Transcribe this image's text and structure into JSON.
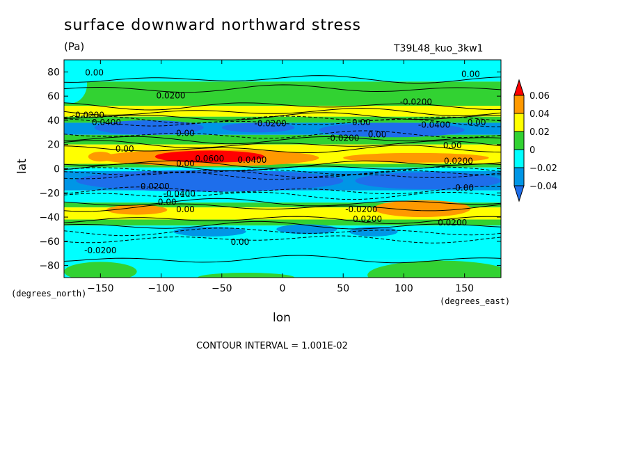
{
  "chart_data": {
    "type": "heatmap",
    "title": "surface downward northward stress",
    "units": "(Pa)",
    "dataset": "T39L48_kuo_3kw1",
    "xlabel": "lon",
    "ylabel": "lat",
    "x_unit_label": "(degrees_east)",
    "y_unit_label": "(degrees_north)",
    "xlim": [
      -180,
      180
    ],
    "ylim": [
      -90,
      90
    ],
    "x_ticks": [
      "-150",
      "-100",
      "-50",
      "0",
      "50",
      "100",
      "150"
    ],
    "y_ticks": [
      "80",
      "60",
      "40",
      "20",
      "0",
      "-20",
      "-40",
      "-60",
      "-80"
    ],
    "contour_interval_text": "CONTOUR INTERVAL = 1.001E-02",
    "colorbar": {
      "labels": [
        "0.06",
        "0.04",
        "0.02",
        "0",
        "−0.02",
        "−0.04"
      ],
      "colors": {
        "lt_m04": "#1e6eeb",
        "m04_m02": "#0096e6",
        "m02_0": "#00ffff",
        "0_02": "#32d232",
        "02_04": "#ffff00",
        "04_06": "#ff9900",
        "gt_06": "#ff0000"
      }
    },
    "contour_labels": [
      "0.00",
      "0.0200",
      "0.00",
      "-0.0200",
      "0.0400",
      "0.00",
      "0.0600",
      "0.0400",
      "-0.0400",
      "0.00",
      "-0.0200",
      "0.00",
      "0.00",
      "-0.0200",
      "0.00",
      "0.0200",
      "0.00",
      "0.0200",
      "-0.0400",
      "0.00",
      "-0.0200",
      "0.0200",
      "0.00",
      "0.00",
      "0.0200",
      "-0.0200",
      "0.00",
      "-0.0200",
      "0.00"
    ]
  }
}
